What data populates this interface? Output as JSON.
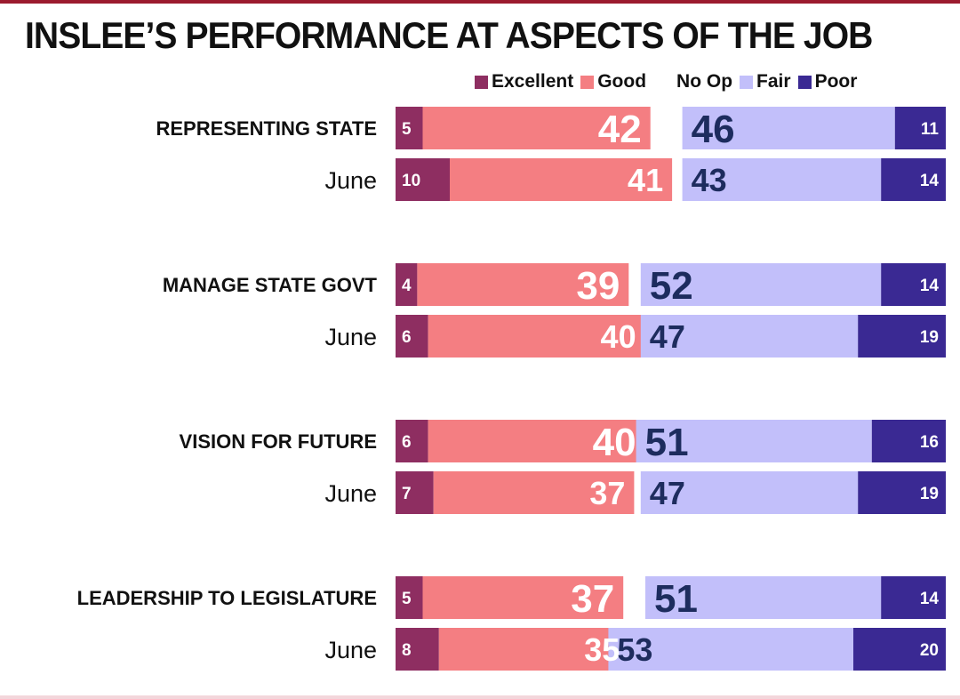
{
  "chart_data": {
    "type": "bar",
    "title": "INSLEE’S PERFORMANCE AT ASPECTS OF THE JOB",
    "legend": [
      "Excellent",
      "Good",
      "No Op",
      "Fair",
      "Poor"
    ],
    "legend_placement": "top-right",
    "colors": {
      "Excellent": "#8e2e61",
      "Good": "#f47e82",
      "Fair": "#c2bffa",
      "Poor": "#3a2993",
      "label_dark": "#1d2c5e",
      "label_light": "#ffffff"
    },
    "groups": [
      {
        "label": "REPRESENTING STATE",
        "rows": [
          {
            "label": "",
            "excellent": 5,
            "good": 42,
            "fair": 46,
            "poor": 11
          },
          {
            "label": "June",
            "excellent": 10,
            "good": 41,
            "fair": 43,
            "poor": 14
          }
        ]
      },
      {
        "label": "MANAGE STATE GOVT",
        "rows": [
          {
            "label": "",
            "excellent": 4,
            "good": 39,
            "fair": 52,
            "poor": 14
          },
          {
            "label": "June",
            "excellent": 6,
            "good": 40,
            "fair": 47,
            "poor": 19
          }
        ]
      },
      {
        "label": "VISION FOR FUTURE",
        "rows": [
          {
            "label": "",
            "excellent": 6,
            "good": 40,
            "fair": 51,
            "poor": 16
          },
          {
            "label": "June",
            "excellent": 7,
            "good": 37,
            "fair": 47,
            "poor": 19
          }
        ]
      },
      {
        "label": "LEADERSHIP TO LEGISLATURE",
        "rows": [
          {
            "label": "",
            "excellent": 5,
            "good": 37,
            "fair": 51,
            "poor": 14
          },
          {
            "label": "June",
            "excellent": 8,
            "good": 35,
            "fair": 53,
            "poor": 20
          }
        ]
      }
    ]
  }
}
